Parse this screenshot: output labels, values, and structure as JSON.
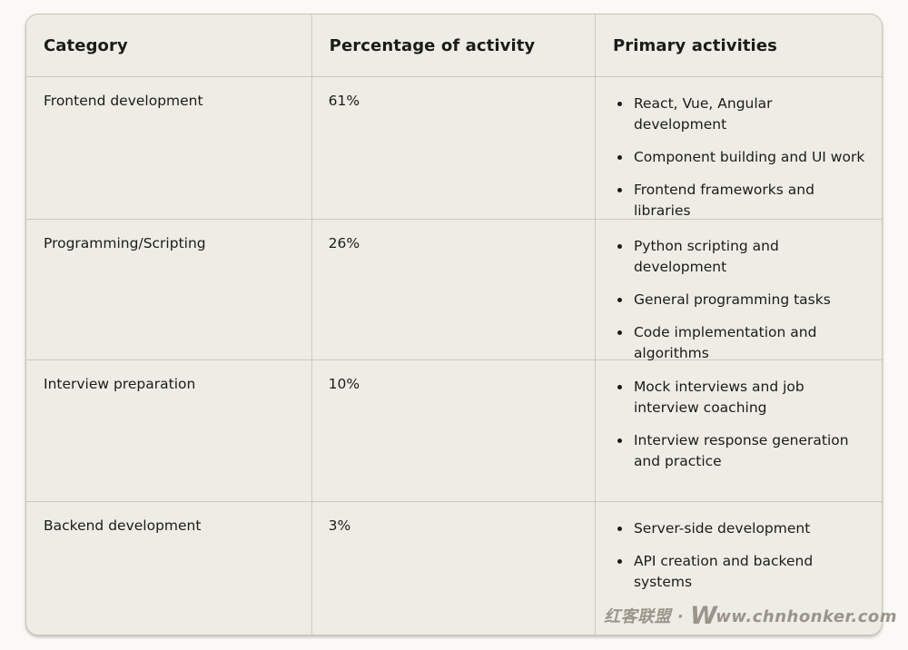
{
  "table": {
    "columns": [
      "Category",
      "Percentage of activity",
      "Primary activities"
    ],
    "rows": [
      {
        "category": "Frontend development",
        "percentage": "61%",
        "activities": [
          "React, Vue, Angular development",
          "Component building and UI work",
          "Frontend frameworks and libraries"
        ]
      },
      {
        "category": "Programming/Scripting",
        "percentage": "26%",
        "activities": [
          "Python scripting and development",
          "General programming tasks",
          "Code implementation and algorithms"
        ]
      },
      {
        "category": "Interview preparation",
        "percentage": "10%",
        "activities": [
          "Mock interviews and job interview coaching",
          "Interview response generation and practice"
        ]
      },
      {
        "category": "Backend development",
        "percentage": "3%",
        "activities": [
          "Server-side development",
          "API creation and backend systems"
        ]
      }
    ]
  },
  "watermark": {
    "prefix": "红客联盟 · ",
    "logo": "W",
    "rest": "ww.chnhonker.com",
    "color": "#9B948A"
  },
  "colors": {
    "page_background": "#FAF9F5",
    "card_background": "#EEEDE5",
    "divider": "#CBC9BF",
    "text": "#1B1B1A"
  }
}
